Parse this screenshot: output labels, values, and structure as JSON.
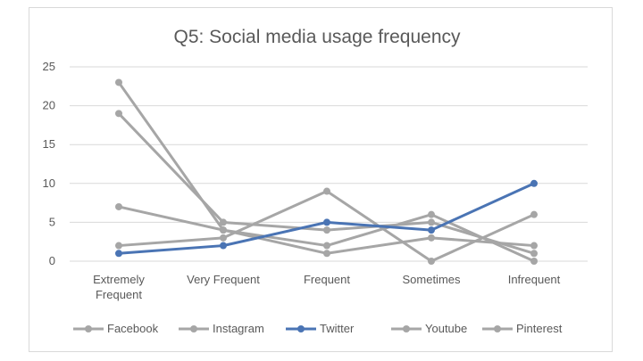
{
  "chart_data": {
    "type": "line",
    "title": "Q5: Social media usage frequency",
    "categories": [
      [
        "Extremely",
        "Frequent"
      ],
      [
        "Very Frequent"
      ],
      [
        "Frequent"
      ],
      [
        "Sometimes"
      ],
      [
        "Infrequent"
      ]
    ],
    "ylim": [
      0,
      25
    ],
    "yticks": [
      0,
      5,
      10,
      15,
      20,
      25
    ],
    "grid": true,
    "legend_position": "bottom",
    "series": [
      {
        "name": "Facebook",
        "color": "#a6a6a6",
        "values": [
          23,
          4,
          2,
          6,
          0
        ]
      },
      {
        "name": "Instagram",
        "color": "#a6a6a6",
        "values": [
          19,
          5,
          4,
          5,
          1
        ]
      },
      {
        "name": "Twitter",
        "color": "#4a74b4",
        "values": [
          1,
          2,
          5,
          4,
          10
        ]
      },
      {
        "name": "Youtube",
        "color": "#a6a6a6",
        "values": [
          2,
          3,
          9,
          0,
          6
        ]
      },
      {
        "name": "Pinterest",
        "color": "#a6a6a6",
        "values": [
          7,
          4,
          1,
          3,
          2
        ]
      }
    ]
  }
}
